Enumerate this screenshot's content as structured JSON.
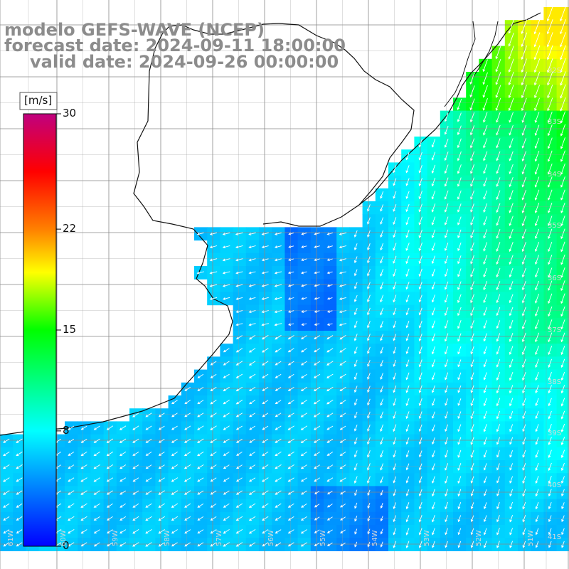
{
  "title": {
    "line1": "modelo GEFS-WAVE (NCEP)",
    "line2": "forecast date: 2024-09-11 18:00:00",
    "line3": "valid date: 2024-09-26 00:00:00"
  },
  "colorbar": {
    "unit": "[m/s]",
    "min": 0,
    "max": 30,
    "ticks": [
      0,
      8,
      15,
      22,
      30
    ],
    "stops": [
      {
        "v": 0,
        "c": "#0000ff"
      },
      {
        "v": 8,
        "c": "#00ffff"
      },
      {
        "v": 15,
        "c": "#00ff00"
      },
      {
        "v": 19,
        "c": "#ffff00"
      },
      {
        "v": 22,
        "c": "#ff8000"
      },
      {
        "v": 26,
        "c": "#ff0000"
      },
      {
        "v": 30,
        "c": "#c0007f"
      }
    ]
  },
  "lat_labels": [
    "32S",
    "33S",
    "34S",
    "35S",
    "36S",
    "37S",
    "38S",
    "39S",
    "40S",
    "41S"
  ],
  "lon_labels": [
    "61W",
    "60W",
    "59W",
    "58W",
    "57W",
    "56W",
    "55W",
    "54W",
    "53W",
    "52W",
    "51W"
  ],
  "chart_data": {
    "type": "heatmap",
    "variable": "wind speed",
    "units": "m/s",
    "lon_range": [
      61.5,
      50.5
    ],
    "lat_range": [
      30.5,
      41.5
    ],
    "regions": [
      {
        "area": "Rio de la Plata estuary",
        "speed": 6
      },
      {
        "area": "coast off Uruguay",
        "speed": 5
      },
      {
        "area": "offshore south of 39S",
        "speed": 7
      },
      {
        "area": "offshore 36S-38S east",
        "speed": 12
      },
      {
        "area": "off southern Brazil 32S-34S",
        "speed": 17
      }
    ],
    "wind_direction": "from north-east / north offshore, from east in estuary"
  }
}
